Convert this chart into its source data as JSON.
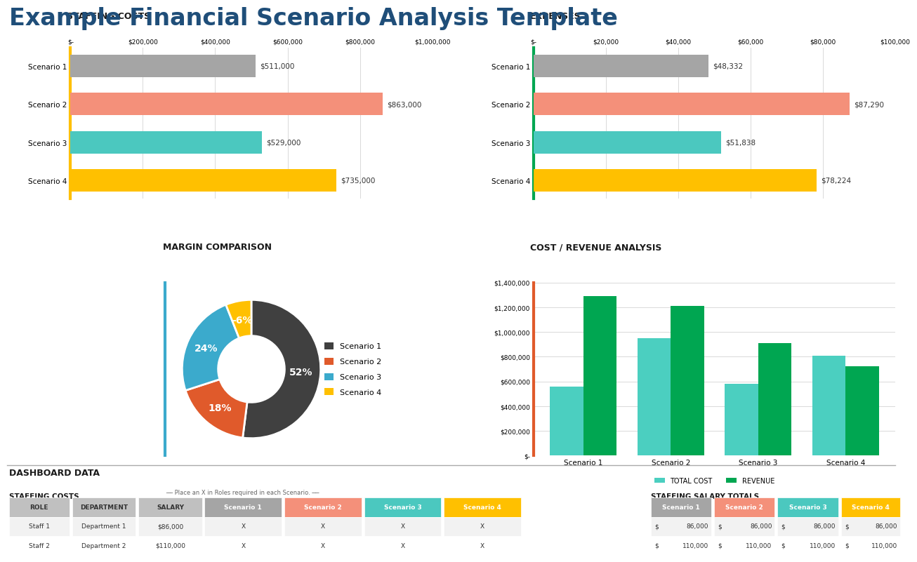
{
  "title": "Example Financial Scenario Analysis Template",
  "title_color": "#1F4E79",
  "title_fontsize": 24,
  "staffing_costs": {
    "section_title": "STAFFING COSTS",
    "categories": [
      "Scenario 1",
      "Scenario 2",
      "Scenario 3",
      "Scenario 4"
    ],
    "values": [
      511000,
      863000,
      529000,
      735000
    ],
    "colors": [
      "#A5A5A5",
      "#F4907A",
      "#4BC8BF",
      "#FFC000"
    ],
    "labels": [
      "$511,000",
      "$863,000",
      "$529,000",
      "$735,000"
    ],
    "xlim": [
      0,
      1000000
    ],
    "xticks": [
      0,
      200000,
      400000,
      600000,
      800000,
      1000000
    ],
    "xtick_labels": [
      "$-",
      "$200,000",
      "$400,000",
      "$600,000",
      "$800,000",
      "$1,000,000"
    ]
  },
  "expenses": {
    "section_title": "EXPENSES",
    "categories": [
      "Scenario 1",
      "Scenario 2",
      "Scenario 3",
      "Scenario 4"
    ],
    "values": [
      48332,
      87290,
      51838,
      78224
    ],
    "colors": [
      "#A5A5A5",
      "#F4907A",
      "#4BC8BF",
      "#FFC000"
    ],
    "labels": [
      "$48,332",
      "$87,290",
      "$51,838",
      "$78,224"
    ],
    "xlim": [
      0,
      100000
    ],
    "xticks": [
      0,
      20000,
      40000,
      60000,
      80000,
      100000
    ],
    "xtick_labels": [
      "$-",
      "$20,000",
      "$40,000",
      "$60,000",
      "$80,000",
      "$100,000"
    ]
  },
  "margin": {
    "section_title": "MARGIN COMPARISON",
    "values": [
      52,
      18,
      24,
      6
    ],
    "labels": [
      "52%",
      "18%",
      "24%",
      "-6%"
    ],
    "colors": [
      "#404040",
      "#E05A2B",
      "#3BAACC",
      "#FFC000"
    ],
    "legend_labels": [
      "Scenario 1",
      "Scenario 2",
      "Scenario 3",
      "Scenario 4"
    ],
    "accent_color": "#3BAACC"
  },
  "cost_revenue": {
    "section_title": "COST / REVENUE ANALYSIS",
    "categories": [
      "Scenario 1",
      "Scenario 2",
      "Scenario 3",
      "Scenario 4"
    ],
    "total_cost": [
      560000,
      950000,
      580000,
      810000
    ],
    "revenue": [
      1290000,
      1210000,
      910000,
      720000
    ],
    "cost_color": "#4BCFC0",
    "revenue_color": "#00A651",
    "ylim": [
      0,
      1400000
    ],
    "yticks": [
      0,
      200000,
      400000,
      600000,
      800000,
      1000000,
      1200000,
      1400000
    ],
    "ytick_labels": [
      "$-",
      "$200,000",
      "$400,000",
      "$600,000",
      "$800,000",
      "$1,000,000",
      "$1,200,000",
      "$1,400,000"
    ],
    "accent_color": "#E05A2B"
  },
  "dashboard_title": "DASHBOARD DATA",
  "staffing_sub_title": "STAFFING COSTS",
  "salary_sub_title": "STAFFING SALARY TOTALS",
  "table_roles": [
    "Staff 1",
    "Staff 2"
  ],
  "table_departments": [
    "Department 1",
    "Department 2"
  ],
  "table_salaries": [
    "$86,000",
    "$110,000"
  ],
  "table_scenario_headers": [
    "Scenario 1",
    "Scenario 2",
    "Scenario 3",
    "Scenario 4"
  ],
  "scenario_header_colors": [
    "#A5A5A5",
    "#F4907A",
    "#4BC8BF",
    "#FFC000"
  ],
  "table_x_marks": [
    [
      "X",
      "X",
      "X",
      "X"
    ],
    [
      "X",
      "X",
      "X",
      "X"
    ]
  ],
  "salary_totals": [
    [
      "86,000",
      "86,000",
      "86,000",
      "86,000"
    ],
    [
      "110,000",
      "110,000",
      "110,000",
      "110,000"
    ]
  ],
  "accent_color_left": "#FFC000",
  "accent_color_right": "#00A651",
  "bg_color": "#FFFFFF",
  "grid_color": "#D9D9D9",
  "section_title_fontsize": 9,
  "bar_label_fontsize": 7.5,
  "tick_fontsize": 6.5,
  "axis_label_fontsize": 7.5
}
